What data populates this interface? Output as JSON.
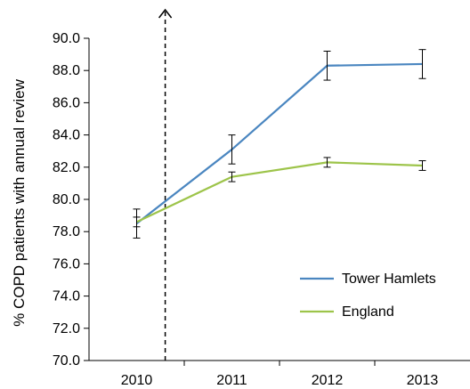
{
  "chart_data": {
    "type": "line",
    "title": "",
    "xlabel": "",
    "ylabel": "% COPD patients with annual review",
    "categories": [
      "2010",
      "2011",
      "2012",
      "2013"
    ],
    "ylim": [
      70.0,
      90.0
    ],
    "yticks": [
      "70.0",
      "72.0",
      "74.0",
      "76.0",
      "78.0",
      "80.0",
      "82.0",
      "84.0",
      "86.0",
      "88.0",
      "90.0"
    ],
    "grid": false,
    "legend_position": "bottom-right",
    "series": [
      {
        "name": "Tower Hamlets",
        "color": "#4a86c0",
        "values": [
          78.5,
          83.1,
          88.3,
          88.4
        ],
        "error_low": [
          77.6,
          82.2,
          87.4,
          87.5
        ],
        "error_high": [
          79.4,
          84.0,
          89.2,
          89.3
        ]
      },
      {
        "name": "England",
        "color": "#9dc44a",
        "values": [
          78.6,
          81.4,
          82.3,
          82.1
        ],
        "error_low": [
          78.3,
          81.1,
          82.0,
          81.8
        ],
        "error_high": [
          78.9,
          81.7,
          82.6,
          82.4
        ]
      }
    ],
    "annotation": {
      "type": "dashed-vertical-arrow",
      "x_position": 2010.3
    }
  }
}
